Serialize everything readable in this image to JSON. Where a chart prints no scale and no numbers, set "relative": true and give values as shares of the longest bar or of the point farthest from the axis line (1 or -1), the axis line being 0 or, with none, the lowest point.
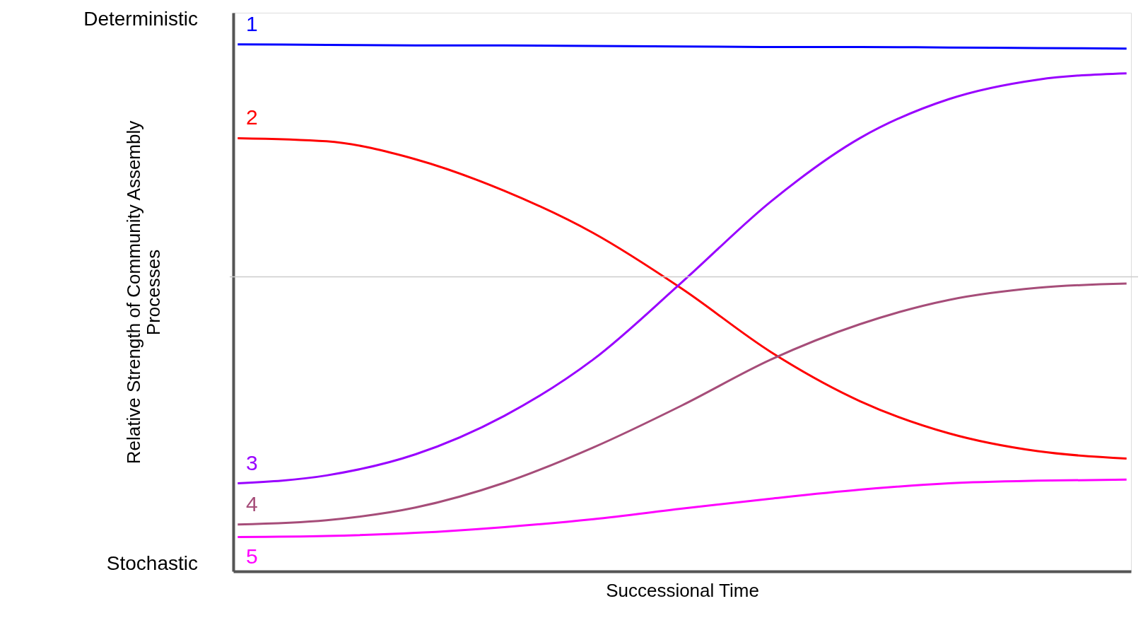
{
  "chart_data": {
    "type": "line",
    "relative": true,
    "xlabel": "Successional Time",
    "ylabel": "Relative Strength of Community Assembly Processes",
    "grid": false,
    "marker": "none",
    "line_style": "solid",
    "categories": [
      null,
      null,
      null,
      null,
      null,
      null,
      null,
      null,
      null,
      null,
      null
    ],
    "series": [
      {
        "name": "1",
        "color": "#0000ff",
        "values": [
          1.0,
          0.999,
          0.998,
          0.998,
          0.997,
          0.996,
          0.995,
          0.995,
          0.994,
          0.993,
          0.992
        ]
      },
      {
        "name": "2",
        "color": "#ff0000",
        "values": [
          0.822,
          0.816,
          0.782,
          0.722,
          0.642,
          0.536,
          0.416,
          0.323,
          0.262,
          0.228,
          0.214
        ]
      },
      {
        "name": "3",
        "color": "#9900ff",
        "values": [
          0.167,
          0.182,
          0.222,
          0.295,
          0.402,
          0.549,
          0.702,
          0.822,
          0.896,
          0.933,
          0.945
        ]
      },
      {
        "name": "4",
        "color": "#a64d79",
        "values": [
          0.089,
          0.097,
          0.121,
          0.168,
          0.235,
          0.315,
          0.402,
          0.469,
          0.515,
          0.538,
          0.546
        ]
      },
      {
        "name": "5",
        "color": "#ff00ff",
        "values": [
          0.065,
          0.067,
          0.073,
          0.084,
          0.099,
          0.119,
          0.138,
          0.155,
          0.167,
          0.172,
          0.174
        ]
      }
    ],
    "ref_lines": [
      {
        "axis": "y",
        "value": 0.559,
        "color": "#cccccc",
        "line_style": "solid"
      }
    ],
    "annotations": [
      "Deterministic",
      "Stochastic"
    ]
  }
}
